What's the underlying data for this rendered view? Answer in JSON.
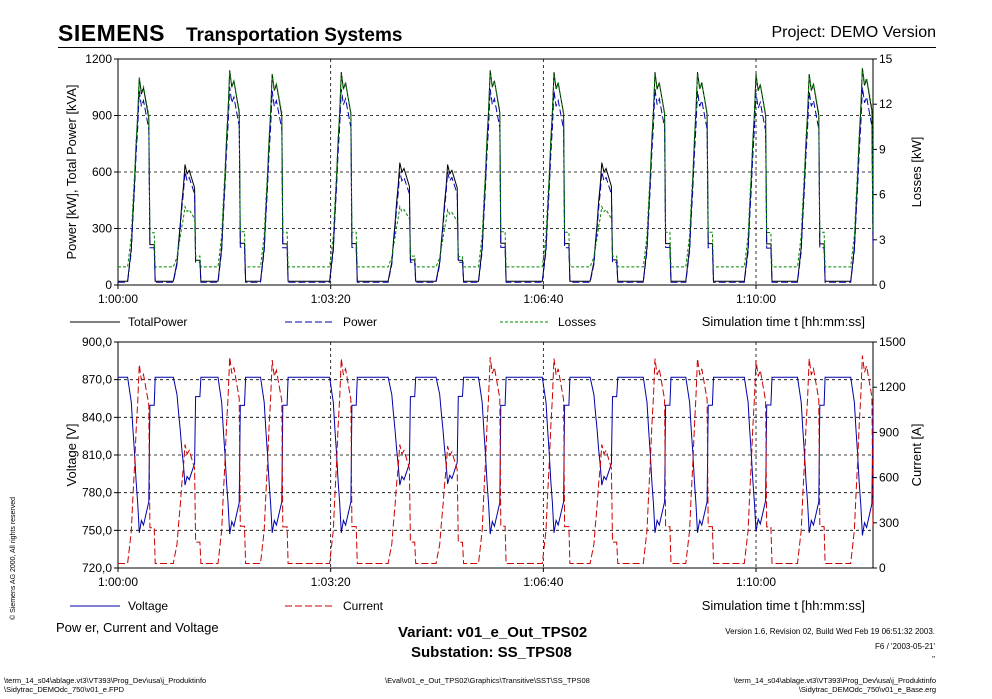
{
  "header": {
    "logo": "SIEMENS",
    "title": "Transportation Systems",
    "project": "Project: DEMO Version"
  },
  "footer": {
    "plot_title": "Pow er, Current and Voltage",
    "variant": "Variant: v01_e_Out_TPS02",
    "substation": "Substation: SS_TPS08",
    "version": "Version 1.6, Revision 02, Build Wed Feb 19 06:51:32 2003.",
    "version_line2": "F6 / '2003-05-21'",
    "version_line3": "\"",
    "path_left_1": "\\term_14_s04\\ablage.vt3\\VT393\\Prog_Dev\\usa\\j_Produktinfo",
    "path_left_2": "\\Sidytrac_DEMOdc_750\\v01_e.FPD",
    "path_mid": "\\Eval\\v01_e_Out_TPS02\\Graphics\\Transitive\\SST\\SS_TPS08",
    "path_right_1": "\\term_14_s04\\ablage.vt3\\VT393\\Prog_Dev\\usa\\j_Produktinfo",
    "path_right_2": "\\Sidytrac_DEMOdc_750\\v01_e_Base.erg",
    "copyright": "© Siemens AG 2000, All rights reserved"
  },
  "chart_data": [
    {
      "type": "line",
      "x_ticks": [
        "1:00:00",
        "1:03:20",
        "1:06:40",
        "1:10:00"
      ],
      "x_tick_seconds": [
        0,
        200,
        400,
        600
      ],
      "xlim_seconds": [
        0,
        710
      ],
      "xlabel": "Simulation time t [hh:mm:ss]",
      "ylabel": "Power [kW], Total Power [kVA]",
      "ylim": [
        0,
        1200
      ],
      "y_ticks": [
        "0",
        "300",
        "600",
        "900",
        "1200"
      ],
      "y2label": "Losses [kW]",
      "y2lim": [
        0,
        15
      ],
      "y2_ticks": [
        "0",
        "3",
        "6",
        "9",
        "12",
        "15"
      ],
      "grid": true,
      "legend_position": "bottom",
      "series": [
        {
          "name": "TotalPower",
          "color": "#000000",
          "style": "solid",
          "axis": "left",
          "peaks": [
            {
              "t": 20,
              "v": 1100
            },
            {
              "t": 63,
              "v": 640
            },
            {
              "t": 105,
              "v": 1140
            },
            {
              "t": 145,
              "v": 1120
            },
            {
              "t": 210,
              "v": 1130
            },
            {
              "t": 265,
              "v": 650
            },
            {
              "t": 310,
              "v": 640
            },
            {
              "t": 350,
              "v": 1140
            },
            {
              "t": 410,
              "v": 1130
            },
            {
              "t": 455,
              "v": 650
            },
            {
              "t": 505,
              "v": 1130
            },
            {
              "t": 545,
              "v": 1130
            },
            {
              "t": 600,
              "v": 1120
            },
            {
              "t": 650,
              "v": 1120
            },
            {
              "t": 700,
              "v": 1150
            }
          ],
          "base": 20
        },
        {
          "name": "Power",
          "color": "#0000aa",
          "style": "dashed",
          "axis": "left",
          "peaks": [
            {
              "t": 20,
              "v": 1030
            },
            {
              "t": 63,
              "v": 600
            },
            {
              "t": 105,
              "v": 1050
            },
            {
              "t": 145,
              "v": 1030
            },
            {
              "t": 210,
              "v": 1040
            },
            {
              "t": 265,
              "v": 600
            },
            {
              "t": 310,
              "v": 600
            },
            {
              "t": 350,
              "v": 1040
            },
            {
              "t": 410,
              "v": 1030
            },
            {
              "t": 455,
              "v": 600
            },
            {
              "t": 505,
              "v": 1040
            },
            {
              "t": 545,
              "v": 1030
            },
            {
              "t": 600,
              "v": 1020
            },
            {
              "t": 650,
              "v": 1030
            },
            {
              "t": 700,
              "v": 1050
            }
          ],
          "base": 15
        },
        {
          "name": "Losses",
          "color": "#008800",
          "style": "dotted",
          "axis": "right",
          "peaks": [
            {
              "t": 20,
              "v": 13.8
            },
            {
              "t": 63,
              "v": 5.2
            },
            {
              "t": 105,
              "v": 14.2
            },
            {
              "t": 145,
              "v": 14.0
            },
            {
              "t": 210,
              "v": 14.0
            },
            {
              "t": 265,
              "v": 5.2
            },
            {
              "t": 310,
              "v": 5.0
            },
            {
              "t": 350,
              "v": 14.2
            },
            {
              "t": 410,
              "v": 14.0
            },
            {
              "t": 455,
              "v": 5.2
            },
            {
              "t": 505,
              "v": 14.0
            },
            {
              "t": 545,
              "v": 14.0
            },
            {
              "t": 600,
              "v": 13.9
            },
            {
              "t": 650,
              "v": 14.0
            },
            {
              "t": 700,
              "v": 14.4
            }
          ],
          "base": 1.2
        }
      ]
    },
    {
      "type": "line",
      "x_ticks": [
        "1:00:00",
        "1:03:20",
        "1:06:40",
        "1:10:00"
      ],
      "x_tick_seconds": [
        0,
        200,
        400,
        600
      ],
      "xlim_seconds": [
        0,
        710
      ],
      "xlabel": "Simulation time t [hh:mm:ss]",
      "ylabel": "Voltage [V]",
      "ylim": [
        720,
        900
      ],
      "y_ticks": [
        "720,0",
        "750,0",
        "780,0",
        "810,0",
        "840,0",
        "870,0",
        "900,0"
      ],
      "y2label": "Current [A]",
      "y2lim": [
        0,
        1500
      ],
      "y2_ticks": [
        "0",
        "300",
        "600",
        "900",
        "1200",
        "1500"
      ],
      "grid": true,
      "legend_position": "bottom",
      "series": [
        {
          "name": "Voltage",
          "color": "#0000aa",
          "style": "solid",
          "axis": "left",
          "minima": [
            {
              "t": 20,
              "v": 748
            },
            {
              "t": 63,
              "v": 786
            },
            {
              "t": 105,
              "v": 747
            },
            {
              "t": 145,
              "v": 748
            },
            {
              "t": 210,
              "v": 748
            },
            {
              "t": 265,
              "v": 786
            },
            {
              "t": 310,
              "v": 787
            },
            {
              "t": 350,
              "v": 747
            },
            {
              "t": 410,
              "v": 748
            },
            {
              "t": 455,
              "v": 786
            },
            {
              "t": 505,
              "v": 748
            },
            {
              "t": 545,
              "v": 748
            },
            {
              "t": 600,
              "v": 749
            },
            {
              "t": 650,
              "v": 748
            },
            {
              "t": 700,
              "v": 746
            }
          ],
          "base": 872
        },
        {
          "name": "Current",
          "color": "#cc0000",
          "style": "dashed",
          "axis": "right",
          "peaks": [
            {
              "t": 20,
              "v": 1350
            },
            {
              "t": 63,
              "v": 820
            },
            {
              "t": 105,
              "v": 1400
            },
            {
              "t": 145,
              "v": 1380
            },
            {
              "t": 210,
              "v": 1390
            },
            {
              "t": 265,
              "v": 820
            },
            {
              "t": 310,
              "v": 810
            },
            {
              "t": 350,
              "v": 1400
            },
            {
              "t": 410,
              "v": 1390
            },
            {
              "t": 455,
              "v": 820
            },
            {
              "t": 505,
              "v": 1390
            },
            {
              "t": 545,
              "v": 1390
            },
            {
              "t": 600,
              "v": 1380
            },
            {
              "t": 650,
              "v": 1390
            },
            {
              "t": 700,
              "v": 1410
            }
          ],
          "base": 30
        }
      ]
    }
  ]
}
